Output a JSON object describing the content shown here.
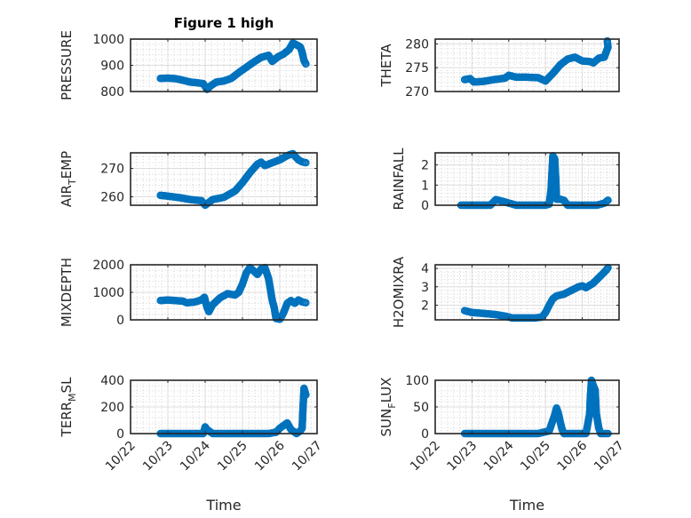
{
  "chart_data": {
    "type": "scatter",
    "title": "Figure 1 high",
    "marker": "open-circle",
    "series_color": "#0072bd",
    "grid": true,
    "minor_grid": true,
    "x_tick_labels": [
      "10/22",
      "10/23",
      "10/24",
      "10/25",
      "10/26",
      "10/27"
    ],
    "xlim": [
      0,
      5
    ],
    "x_units": "days since 10/22",
    "xlabel": "Time",
    "panels": [
      {
        "id": "pressure",
        "ylabel": "PRESSURE",
        "ylabel_sub": "",
        "ylim": [
          800,
          1000
        ],
        "yticks": [
          800,
          900,
          1000
        ],
        "points": [
          [
            0.8,
            850
          ],
          [
            1.0,
            851
          ],
          [
            1.2,
            849
          ],
          [
            1.4,
            843
          ],
          [
            1.6,
            836
          ],
          [
            1.8,
            833
          ],
          [
            1.95,
            830
          ],
          [
            2.05,
            808
          ],
          [
            2.15,
            822
          ],
          [
            2.3,
            836
          ],
          [
            2.5,
            840
          ],
          [
            2.7,
            850
          ],
          [
            2.9,
            872
          ],
          [
            3.1,
            892
          ],
          [
            3.3,
            912
          ],
          [
            3.5,
            930
          ],
          [
            3.7,
            938
          ],
          [
            3.8,
            915
          ],
          [
            3.95,
            932
          ],
          [
            4.1,
            943
          ],
          [
            4.25,
            960
          ],
          [
            4.35,
            985
          ],
          [
            4.45,
            978
          ],
          [
            4.55,
            970
          ],
          [
            4.6,
            950
          ],
          [
            4.65,
            918
          ],
          [
            4.7,
            905
          ]
        ]
      },
      {
        "id": "theta",
        "ylabel": "THETA",
        "ylabel_sub": "",
        "ylim": [
          270,
          281
        ],
        "yticks": [
          270,
          275,
          280
        ],
        "points": [
          [
            0.8,
            272.5
          ],
          [
            0.95,
            272.7
          ],
          [
            1.05,
            272.0
          ],
          [
            1.3,
            272.1
          ],
          [
            1.6,
            272.5
          ],
          [
            1.9,
            272.8
          ],
          [
            2.0,
            273.4
          ],
          [
            2.2,
            273.0
          ],
          [
            2.5,
            273.0
          ],
          [
            2.8,
            272.9
          ],
          [
            3.0,
            272.2
          ],
          [
            3.2,
            273.8
          ],
          [
            3.4,
            275.6
          ],
          [
            3.6,
            276.8
          ],
          [
            3.8,
            277.2
          ],
          [
            4.0,
            276.4
          ],
          [
            4.2,
            276.3
          ],
          [
            4.3,
            276.0
          ],
          [
            4.45,
            277.0
          ],
          [
            4.6,
            277.2
          ],
          [
            4.65,
            278.3
          ],
          [
            4.7,
            279.3
          ],
          [
            4.68,
            280.6
          ]
        ]
      },
      {
        "id": "air-temp",
        "ylabel": "AIR",
        "ylabel_sub": "T",
        "ylabel_suffix": "EMP",
        "ylim": [
          257,
          275.5
        ],
        "yticks": [
          260,
          270
        ],
        "points": [
          [
            0.8,
            260.5
          ],
          [
            1.0,
            260.2
          ],
          [
            1.3,
            259.7
          ],
          [
            1.6,
            259.0
          ],
          [
            1.9,
            258.6
          ],
          [
            2.0,
            257.0
          ],
          [
            2.2,
            259.0
          ],
          [
            2.5,
            259.8
          ],
          [
            2.8,
            262.0
          ],
          [
            3.0,
            265.0
          ],
          [
            3.2,
            268.5
          ],
          [
            3.4,
            271.5
          ],
          [
            3.5,
            272.2
          ],
          [
            3.6,
            271.0
          ],
          [
            3.8,
            272.0
          ],
          [
            4.0,
            273.0
          ],
          [
            4.2,
            274.5
          ],
          [
            4.35,
            275.2
          ],
          [
            4.5,
            273.0
          ],
          [
            4.6,
            272.3
          ],
          [
            4.7,
            272.0
          ]
        ]
      },
      {
        "id": "rainfall",
        "ylabel": "RAINFALL",
        "ylabel_sub": "",
        "ylim": [
          0,
          2.6
        ],
        "yticks": [
          0,
          1,
          2
        ],
        "points": [
          [
            0.7,
            0
          ],
          [
            1.0,
            0
          ],
          [
            1.5,
            0
          ],
          [
            1.65,
            0.28
          ],
          [
            1.9,
            0.16
          ],
          [
            2.2,
            0
          ],
          [
            2.6,
            0
          ],
          [
            3.0,
            0
          ],
          [
            3.1,
            0.05
          ],
          [
            3.15,
            0.75
          ],
          [
            3.2,
            2.45
          ],
          [
            3.25,
            2.3
          ],
          [
            3.28,
            1.25
          ],
          [
            3.3,
            0.3
          ],
          [
            3.4,
            0.3
          ],
          [
            3.5,
            0.25
          ],
          [
            3.6,
            0
          ],
          [
            4.0,
            0
          ],
          [
            4.4,
            0
          ],
          [
            4.6,
            0.1
          ],
          [
            4.7,
            0.25
          ]
        ]
      },
      {
        "id": "mixdepth",
        "ylabel": "MIXDEPTH",
        "ylabel_sub": "",
        "ylim": [
          0,
          2000
        ],
        "yticks": [
          0,
          1000,
          2000
        ],
        "points": [
          [
            0.8,
            700
          ],
          [
            1.0,
            720
          ],
          [
            1.2,
            700
          ],
          [
            1.4,
            680
          ],
          [
            1.5,
            620
          ],
          [
            1.7,
            640
          ],
          [
            1.9,
            720
          ],
          [
            1.98,
            820
          ],
          [
            2.05,
            450
          ],
          [
            2.1,
            300
          ],
          [
            2.2,
            550
          ],
          [
            2.4,
            800
          ],
          [
            2.6,
            950
          ],
          [
            2.8,
            900
          ],
          [
            2.9,
            1000
          ],
          [
            3.0,
            1300
          ],
          [
            3.1,
            1700
          ],
          [
            3.2,
            1900
          ],
          [
            3.3,
            1780
          ],
          [
            3.4,
            1650
          ],
          [
            3.5,
            1850
          ],
          [
            3.6,
            1900
          ],
          [
            3.7,
            1500
          ],
          [
            3.75,
            1100
          ],
          [
            3.8,
            700
          ],
          [
            3.85,
            450
          ],
          [
            3.9,
            50
          ],
          [
            4.0,
            20
          ],
          [
            4.1,
            250
          ],
          [
            4.2,
            600
          ],
          [
            4.3,
            700
          ],
          [
            4.4,
            600
          ],
          [
            4.5,
            720
          ],
          [
            4.6,
            650
          ],
          [
            4.7,
            620
          ]
        ]
      },
      {
        "id": "h2omixra",
        "ylabel": "H2OMIXRA",
        "ylabel_sub": "",
        "ylim": [
          1.2,
          4.2
        ],
        "yticks": [
          2,
          3,
          4
        ],
        "points": [
          [
            0.8,
            1.7
          ],
          [
            1.0,
            1.6
          ],
          [
            1.3,
            1.55
          ],
          [
            1.6,
            1.5
          ],
          [
            1.9,
            1.4
          ],
          [
            2.1,
            1.3
          ],
          [
            2.4,
            1.3
          ],
          [
            2.7,
            1.3
          ],
          [
            2.9,
            1.35
          ],
          [
            3.0,
            1.6
          ],
          [
            3.1,
            2.0
          ],
          [
            3.2,
            2.35
          ],
          [
            3.3,
            2.5
          ],
          [
            3.5,
            2.6
          ],
          [
            3.7,
            2.8
          ],
          [
            3.9,
            3.0
          ],
          [
            4.0,
            3.05
          ],
          [
            4.1,
            2.95
          ],
          [
            4.3,
            3.2
          ],
          [
            4.45,
            3.5
          ],
          [
            4.55,
            3.7
          ],
          [
            4.65,
            3.9
          ],
          [
            4.7,
            4.05
          ]
        ]
      },
      {
        "id": "terr-msl",
        "ylabel": "TERR",
        "ylabel_sub": "M",
        "ylabel_suffix": "SL",
        "ylim": [
          0,
          400
        ],
        "yticks": [
          0,
          200,
          400
        ],
        "points": [
          [
            0.8,
            0
          ],
          [
            1.2,
            0
          ],
          [
            1.6,
            0
          ],
          [
            1.95,
            0
          ],
          [
            2.0,
            50
          ],
          [
            2.05,
            30
          ],
          [
            2.2,
            0
          ],
          [
            2.6,
            0
          ],
          [
            3.0,
            0
          ],
          [
            3.4,
            0
          ],
          [
            3.7,
            0
          ],
          [
            3.9,
            10
          ],
          [
            4.0,
            40
          ],
          [
            4.1,
            60
          ],
          [
            4.2,
            80
          ],
          [
            4.3,
            30
          ],
          [
            4.4,
            10
          ],
          [
            4.45,
            0
          ],
          [
            4.55,
            20
          ],
          [
            4.6,
            40
          ],
          [
            4.62,
            175
          ],
          [
            4.65,
            340
          ],
          [
            4.7,
            290
          ]
        ]
      },
      {
        "id": "sun-flux",
        "ylabel": "SUN",
        "ylabel_sub": "F",
        "ylabel_suffix": "LUX",
        "ylim": [
          0,
          100
        ],
        "yticks": [
          0,
          50,
          100
        ],
        "points": [
          [
            0.8,
            0
          ],
          [
            1.2,
            0
          ],
          [
            1.6,
            0
          ],
          [
            2.0,
            0
          ],
          [
            2.4,
            0
          ],
          [
            2.8,
            0
          ],
          [
            3.1,
            5
          ],
          [
            3.15,
            15
          ],
          [
            3.2,
            25
          ],
          [
            3.25,
            35
          ],
          [
            3.3,
            48
          ],
          [
            3.35,
            38
          ],
          [
            3.4,
            22
          ],
          [
            3.45,
            8
          ],
          [
            3.5,
            0
          ],
          [
            3.8,
            0
          ],
          [
            4.1,
            0
          ],
          [
            4.2,
            37
          ],
          [
            4.22,
            70
          ],
          [
            4.25,
            100
          ],
          [
            4.3,
            90
          ],
          [
            4.35,
            82
          ],
          [
            4.38,
            38
          ],
          [
            4.45,
            10
          ],
          [
            4.5,
            0
          ],
          [
            4.6,
            0
          ],
          [
            4.7,
            0
          ]
        ]
      }
    ]
  }
}
